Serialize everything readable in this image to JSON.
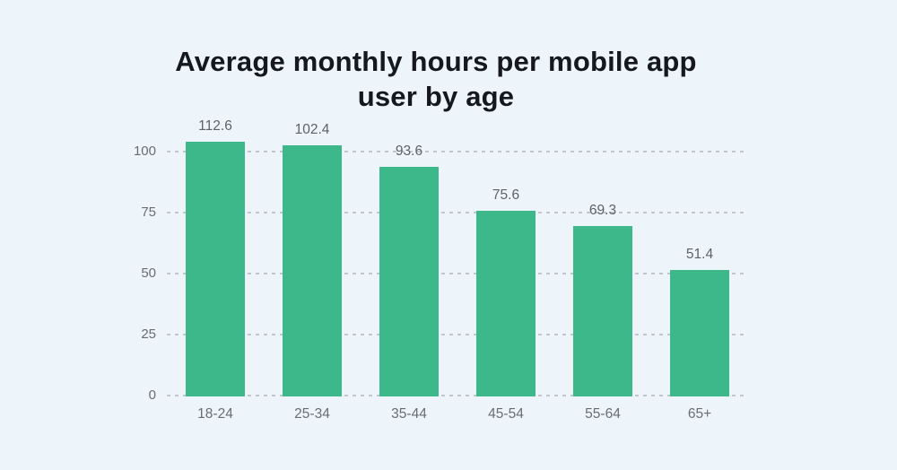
{
  "title_lines": [
    "Average monthly hours per mobile app",
    "user by age"
  ],
  "chart_data": {
    "type": "bar",
    "title": "Average monthly hours per mobile app user by age",
    "categories": [
      "18-24",
      "25-34",
      "35-44",
      "45-54",
      "55-64",
      "65+"
    ],
    "values": [
      112.6,
      102.4,
      93.6,
      75.6,
      69.3,
      51.4
    ],
    "value_labels": [
      "112.6",
      "102.4",
      "93.6",
      "75.6",
      "69.3",
      "51.4"
    ],
    "xlabel": "",
    "ylabel": "",
    "yticks": [
      0,
      25,
      50,
      75,
      100
    ],
    "ylim": [
      0,
      104
    ],
    "grid": "dashed-horizontal-only",
    "legend": "none",
    "bar_clipped_at_plot_top": "18-24",
    "colors": {
      "bar": "#3db88a",
      "background": "#edf4fa",
      "gridline": "#c2c6ca",
      "tick_label": "#686d72",
      "value_label": "#5d6266",
      "title": "#15181c"
    }
  }
}
